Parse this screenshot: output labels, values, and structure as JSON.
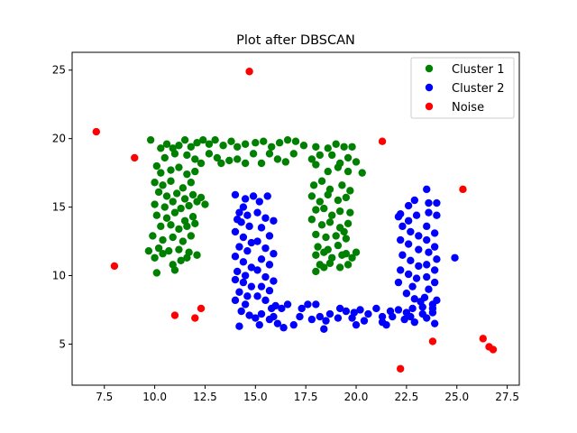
{
  "chart_data": {
    "type": "scatter",
    "title": "Plot after DBSCAN",
    "xlabel": "",
    "ylabel": "",
    "xlim": [
      5.9,
      28.1
    ],
    "ylim": [
      2.0,
      26.3
    ],
    "xticks": [
      7.5,
      10.0,
      12.5,
      15.0,
      17.5,
      20.0,
      22.5,
      25.0,
      27.5
    ],
    "xtick_labels": [
      "7.5",
      "10.0",
      "12.5",
      "15.0",
      "17.5",
      "20.0",
      "22.5",
      "25.0",
      "27.5"
    ],
    "yticks": [
      5,
      10,
      15,
      20,
      25
    ],
    "ytick_labels": [
      "5",
      "10",
      "15",
      "20",
      "25"
    ],
    "grid": false,
    "legend_position": "top-right",
    "series": [
      {
        "name": "Cluster 1",
        "color": "#008000",
        "points": [
          [
            9.8,
            19.9
          ],
          [
            10.3,
            19.3
          ],
          [
            10.6,
            19.6
          ],
          [
            10.9,
            19.3
          ],
          [
            11.2,
            19.5
          ],
          [
            11.5,
            19.9
          ],
          [
            11.8,
            19.4
          ],
          [
            12.1,
            19.7
          ],
          [
            12.4,
            19.9
          ],
          [
            12.7,
            19.6
          ],
          [
            13.0,
            19.9
          ],
          [
            13.4,
            19.5
          ],
          [
            13.8,
            19.8
          ],
          [
            14.1,
            19.4
          ],
          [
            14.5,
            19.6
          ],
          [
            15.0,
            19.7
          ],
          [
            15.4,
            19.8
          ],
          [
            15.8,
            19.4
          ],
          [
            16.2,
            19.7
          ],
          [
            16.6,
            19.9
          ],
          [
            17.0,
            19.8
          ],
          [
            17.4,
            19.5
          ],
          [
            10.5,
            18.6
          ],
          [
            11.0,
            18.9
          ],
          [
            11.6,
            18.8
          ],
          [
            12.0,
            18.5
          ],
          [
            12.3,
            18.2
          ],
          [
            12.7,
            18.9
          ],
          [
            13.1,
            18.6
          ],
          [
            13.3,
            18.2
          ],
          [
            13.7,
            18.4
          ],
          [
            14.1,
            18.5
          ],
          [
            14.5,
            18.2
          ],
          [
            14.9,
            18.9
          ],
          [
            15.3,
            18.2
          ],
          [
            15.7,
            18.9
          ],
          [
            16.1,
            18.5
          ],
          [
            16.5,
            18.3
          ],
          [
            16.9,
            18.9
          ],
          [
            18.0,
            19.4
          ],
          [
            18.6,
            19.3
          ],
          [
            19.0,
            19.6
          ],
          [
            19.4,
            19.4
          ],
          [
            19.8,
            19.4
          ],
          [
            17.8,
            18.5
          ],
          [
            18.2,
            18.8
          ],
          [
            18.8,
            18.8
          ],
          [
            19.2,
            18.2
          ],
          [
            19.6,
            18.6
          ],
          [
            20.0,
            18.3
          ],
          [
            18.0,
            18.1
          ],
          [
            18.6,
            17.6
          ],
          [
            19.1,
            17.9
          ],
          [
            19.6,
            17.6
          ],
          [
            20.3,
            17.5
          ],
          [
            10.1,
            18.0
          ],
          [
            10.3,
            17.5
          ],
          [
            10.8,
            17.7
          ],
          [
            11.2,
            17.9
          ],
          [
            11.6,
            17.4
          ],
          [
            12.0,
            17.6
          ],
          [
            10.0,
            16.8
          ],
          [
            10.4,
            16.6
          ],
          [
            10.8,
            16.9
          ],
          [
            11.4,
            16.4
          ],
          [
            11.8,
            16.8
          ],
          [
            10.2,
            16.1
          ],
          [
            10.6,
            15.8
          ],
          [
            11.1,
            16.0
          ],
          [
            11.5,
            15.6
          ],
          [
            11.9,
            15.9
          ],
          [
            12.3,
            15.7
          ],
          [
            10.0,
            15.2
          ],
          [
            10.5,
            15.0
          ],
          [
            10.9,
            15.4
          ],
          [
            11.3,
            14.9
          ],
          [
            11.7,
            15.1
          ],
          [
            10.1,
            14.4
          ],
          [
            10.6,
            14.2
          ],
          [
            11.0,
            14.6
          ],
          [
            11.5,
            14.0
          ],
          [
            11.9,
            14.3
          ],
          [
            10.3,
            13.6
          ],
          [
            10.8,
            13.7
          ],
          [
            11.2,
            13.4
          ],
          [
            11.6,
            13.6
          ],
          [
            12.0,
            13.8
          ],
          [
            9.9,
            12.9
          ],
          [
            10.4,
            12.6
          ],
          [
            10.9,
            12.8
          ],
          [
            11.4,
            12.5
          ],
          [
            11.8,
            12.9
          ],
          [
            10.2,
            12.0
          ],
          [
            10.7,
            11.8
          ],
          [
            11.2,
            11.9
          ],
          [
            11.7,
            11.7
          ],
          [
            12.1,
            11.5
          ],
          [
            9.7,
            11.8
          ],
          [
            10.0,
            11.3
          ],
          [
            10.4,
            11.6
          ],
          [
            10.9,
            10.8
          ],
          [
            11.3,
            11.1
          ],
          [
            11.6,
            11.3
          ],
          [
            10.1,
            10.2
          ],
          [
            11.0,
            10.4
          ],
          [
            12.1,
            15.4
          ],
          [
            12.5,
            15.2
          ],
          [
            17.8,
            15.8
          ],
          [
            18.2,
            15.4
          ],
          [
            18.6,
            15.9
          ],
          [
            19.1,
            15.5
          ],
          [
            19.5,
            15.7
          ],
          [
            17.9,
            16.6
          ],
          [
            18.3,
            16.9
          ],
          [
            18.7,
            16.3
          ],
          [
            19.3,
            16.6
          ],
          [
            19.7,
            16.2
          ],
          [
            18.0,
            14.8
          ],
          [
            18.4,
            14.9
          ],
          [
            18.8,
            14.4
          ],
          [
            19.2,
            14.7
          ],
          [
            19.7,
            14.6
          ],
          [
            17.8,
            14.1
          ],
          [
            18.3,
            13.7
          ],
          [
            18.7,
            13.9
          ],
          [
            19.2,
            13.5
          ],
          [
            19.6,
            13.8
          ],
          [
            18.0,
            13.0
          ],
          [
            18.5,
            12.8
          ],
          [
            19.0,
            12.9
          ],
          [
            19.5,
            12.7
          ],
          [
            18.1,
            12.1
          ],
          [
            18.6,
            11.9
          ],
          [
            19.1,
            12.2
          ],
          [
            19.5,
            11.6
          ],
          [
            18.0,
            11.5
          ],
          [
            18.4,
            11.7
          ],
          [
            18.8,
            11.3
          ],
          [
            19.3,
            11.5
          ],
          [
            19.8,
            11.3
          ],
          [
            18.2,
            10.8
          ],
          [
            18.7,
            10.9
          ],
          [
            19.2,
            10.6
          ],
          [
            19.6,
            10.8
          ],
          [
            18.0,
            10.3
          ],
          [
            18.4,
            10.6
          ],
          [
            20.0,
            11.7
          ],
          [
            19.4,
            13.2
          ]
        ]
      },
      {
        "name": "Cluster 2",
        "color": "#0000ff",
        "points": [
          [
            14.0,
            15.9
          ],
          [
            14.5,
            15.6
          ],
          [
            14.4,
            15.0
          ],
          [
            14.2,
            14.6
          ],
          [
            14.6,
            14.4
          ],
          [
            14.1,
            14.1
          ],
          [
            14.3,
            13.9
          ],
          [
            14.7,
            13.6
          ],
          [
            14.0,
            13.2
          ],
          [
            14.4,
            12.8
          ],
          [
            14.8,
            12.4
          ],
          [
            14.2,
            12.1
          ],
          [
            14.6,
            11.8
          ],
          [
            14.0,
            11.4
          ],
          [
            14.4,
            11.0
          ],
          [
            14.8,
            10.6
          ],
          [
            14.1,
            10.3
          ],
          [
            14.5,
            10.0
          ],
          [
            14.0,
            9.7
          ],
          [
            14.4,
            9.5
          ],
          [
            14.8,
            9.2
          ],
          [
            14.2,
            8.8
          ],
          [
            14.6,
            8.5
          ],
          [
            14.0,
            8.2
          ],
          [
            14.5,
            7.9
          ],
          [
            14.3,
            7.4
          ],
          [
            14.7,
            7.1
          ],
          [
            14.2,
            6.3
          ],
          [
            15.0,
            6.9
          ],
          [
            14.9,
            15.8
          ],
          [
            15.2,
            15.4
          ],
          [
            15.6,
            15.8
          ],
          [
            15.1,
            14.6
          ],
          [
            15.5,
            14.2
          ],
          [
            15.9,
            14.0
          ],
          [
            15.3,
            13.5
          ],
          [
            15.7,
            12.9
          ],
          [
            15.1,
            12.5
          ],
          [
            15.5,
            12.0
          ],
          [
            15.9,
            11.6
          ],
          [
            15.3,
            11.2
          ],
          [
            15.7,
            10.8
          ],
          [
            15.1,
            10.4
          ],
          [
            15.5,
            9.9
          ],
          [
            15.9,
            9.6
          ],
          [
            15.3,
            9.2
          ],
          [
            15.7,
            8.9
          ],
          [
            15.1,
            8.5
          ],
          [
            15.5,
            8.2
          ],
          [
            15.8,
            7.6
          ],
          [
            15.3,
            7.2
          ],
          [
            15.7,
            6.8
          ],
          [
            15.9,
            7.0
          ],
          [
            15.2,
            6.4
          ],
          [
            16.0,
            7.8
          ],
          [
            16.3,
            7.6
          ],
          [
            16.6,
            7.9
          ],
          [
            16.1,
            6.5
          ],
          [
            16.4,
            6.2
          ],
          [
            16.9,
            6.4
          ],
          [
            17.3,
            7.6
          ],
          [
            17.6,
            7.9
          ],
          [
            17.2,
            7.0
          ],
          [
            17.8,
            6.8
          ],
          [
            18.2,
            7.0
          ],
          [
            18.0,
            7.9
          ],
          [
            18.5,
            6.7
          ],
          [
            18.7,
            7.2
          ],
          [
            19.1,
            6.9
          ],
          [
            19.5,
            7.4
          ],
          [
            19.9,
            7.3
          ],
          [
            19.2,
            7.6
          ],
          [
            19.8,
            6.9
          ],
          [
            20.2,
            7.5
          ],
          [
            20.6,
            7.2
          ],
          [
            21.0,
            7.6
          ],
          [
            20.4,
            6.7
          ],
          [
            21.3,
            7.0
          ],
          [
            21.7,
            7.4
          ],
          [
            21.3,
            6.6
          ],
          [
            22.1,
            7.5
          ],
          [
            22.5,
            7.3
          ],
          [
            22.4,
            6.8
          ],
          [
            22.9,
            6.6
          ],
          [
            23.3,
            7.2
          ],
          [
            23.5,
            6.9
          ],
          [
            23.9,
            6.5
          ],
          [
            23.8,
            7.3
          ],
          [
            23.8,
            7.9
          ],
          [
            22.8,
            7.6
          ],
          [
            23.2,
            8.1
          ],
          [
            22.2,
            14.5
          ],
          [
            22.6,
            15.1
          ],
          [
            22.9,
            15.5
          ],
          [
            22.1,
            14.3
          ],
          [
            22.6,
            14.0
          ],
          [
            23.0,
            14.4
          ],
          [
            22.3,
            13.6
          ],
          [
            22.7,
            13.2
          ],
          [
            23.1,
            12.9
          ],
          [
            22.2,
            12.6
          ],
          [
            22.6,
            12.3
          ],
          [
            23.1,
            11.9
          ],
          [
            22.3,
            11.5
          ],
          [
            22.7,
            11.1
          ],
          [
            23.1,
            10.7
          ],
          [
            22.2,
            10.4
          ],
          [
            22.6,
            10.1
          ],
          [
            23.0,
            9.8
          ],
          [
            23.5,
            16.3
          ],
          [
            23.6,
            15.3
          ],
          [
            24.0,
            15.3
          ],
          [
            23.6,
            14.6
          ],
          [
            24.0,
            14.4
          ],
          [
            23.5,
            13.6
          ],
          [
            23.9,
            13.1
          ],
          [
            23.5,
            12.6
          ],
          [
            23.9,
            12.1
          ],
          [
            23.6,
            11.7
          ],
          [
            24.0,
            11.2
          ],
          [
            23.5,
            10.8
          ],
          [
            23.9,
            10.4
          ],
          [
            23.5,
            9.9
          ],
          [
            23.9,
            9.5
          ],
          [
            23.6,
            9.0
          ],
          [
            23.4,
            8.4
          ],
          [
            24.0,
            8.2
          ],
          [
            23.8,
            7.6
          ],
          [
            22.1,
            9.5
          ],
          [
            22.5,
            8.7
          ],
          [
            22.9,
            8.3
          ],
          [
            23.3,
            7.7
          ],
          [
            22.8,
            9.2
          ],
          [
            24.9,
            11.3
          ],
          [
            21.8,
            7.0
          ],
          [
            18.4,
            6.1
          ],
          [
            20.0,
            6.4
          ],
          [
            21.5,
            6.4
          ],
          [
            22.7,
            7.0
          ]
        ]
      },
      {
        "name": "Noise",
        "color": "#ff0000",
        "points": [
          [
            7.1,
            20.5
          ],
          [
            9.0,
            18.6
          ],
          [
            14.7,
            24.9
          ],
          [
            21.3,
            19.8
          ],
          [
            25.3,
            16.3
          ],
          [
            8.0,
            10.7
          ],
          [
            11.0,
            7.1
          ],
          [
            12.0,
            6.9
          ],
          [
            12.3,
            7.6
          ],
          [
            22.2,
            3.2
          ],
          [
            23.8,
            5.2
          ],
          [
            26.3,
            5.4
          ],
          [
            26.6,
            4.8
          ],
          [
            26.8,
            4.6
          ]
        ]
      }
    ]
  }
}
